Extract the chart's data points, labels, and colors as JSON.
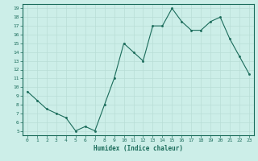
{
  "x": [
    0,
    1,
    2,
    3,
    4,
    5,
    6,
    7,
    8,
    9,
    10,
    11,
    12,
    13,
    14,
    15,
    16,
    17,
    18,
    19,
    20,
    21,
    22,
    23
  ],
  "y": [
    9.5,
    8.5,
    7.5,
    7.0,
    6.5,
    5.0,
    5.5,
    5.0,
    8.0,
    11.0,
    15.0,
    14.0,
    13.0,
    17.0,
    17.0,
    19.0,
    17.5,
    16.5,
    16.5,
    17.5,
    18.0,
    15.5,
    13.5,
    11.5
  ],
  "xlim": [
    -0.5,
    23.5
  ],
  "ylim": [
    4.5,
    19.5
  ],
  "yticks": [
    5,
    6,
    7,
    8,
    9,
    10,
    11,
    12,
    13,
    14,
    15,
    16,
    17,
    18,
    19
  ],
  "xtick_labels": [
    "0",
    "1",
    "2",
    "3",
    "4",
    "5",
    "6",
    "7",
    "8",
    "9",
    "10",
    "11",
    "12",
    "13",
    "14",
    "15",
    "16",
    "17",
    "18",
    "19",
    "20",
    "21",
    "22",
    "23"
  ],
  "xlabel": "Humidex (Indice chaleur)",
  "line_color": "#1a6b5a",
  "marker_color": "#1a6b5a",
  "bg_color": "#cceee8",
  "grid_color": "#b8ddd6",
  "axis_color": "#1a6b5a",
  "tick_color": "#1a6b5a",
  "label_color": "#1a6b5a"
}
